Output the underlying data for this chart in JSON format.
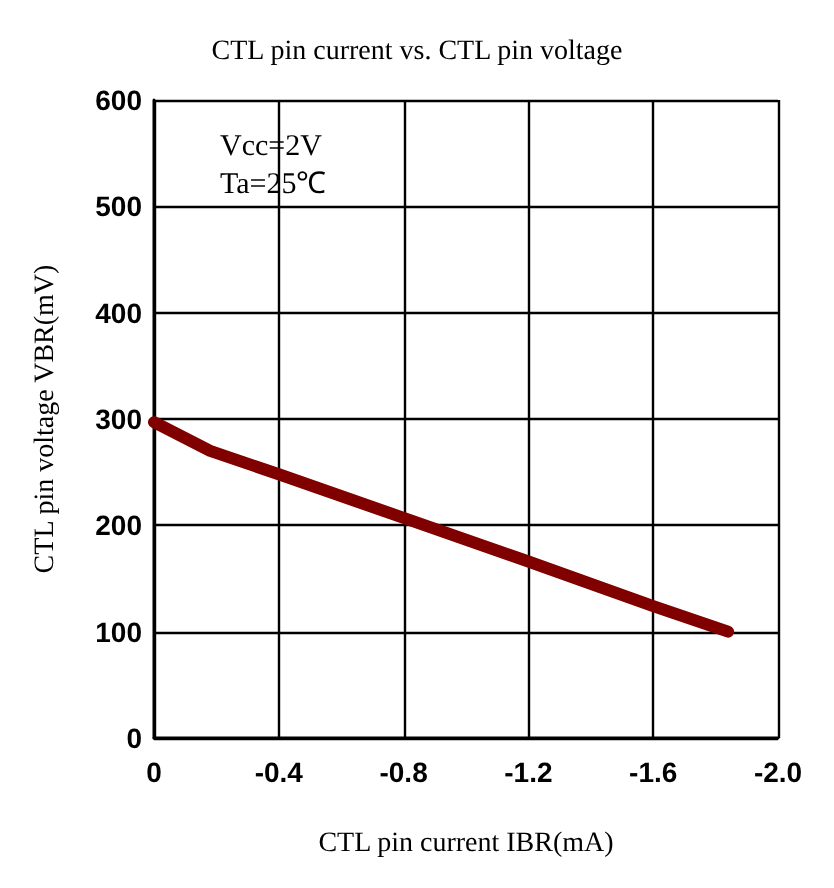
{
  "chart_data": {
    "type": "line",
    "title": "CTL pin current vs. CTL pin voltage",
    "xlabel": "CTL pin current IBR(mA)",
    "ylabel": "CTL pin voltage VBR(mV)",
    "annotations": [
      "Vcc=2V",
      "Ta=25℃"
    ],
    "x": [
      0,
      -0.18,
      -0.4,
      -0.8,
      -1.2,
      -1.6,
      -1.84
    ],
    "series": [
      {
        "color": "#800000",
        "values": [
          297,
          270,
          248,
          207,
          166,
          124,
          100
        ]
      }
    ],
    "xlim": [
      0,
      -2
    ],
    "xticks": [
      0,
      -0.4,
      -0.8,
      -1.2,
      -1.6,
      {
        "value": -2,
        "label": "-2.0"
      }
    ],
    "ylim": [
      0,
      600
    ],
    "yticks": [
      0,
      100,
      200,
      300,
      400,
      500,
      600
    ],
    "grid": true,
    "marker": "none",
    "line_style": "solid"
  }
}
